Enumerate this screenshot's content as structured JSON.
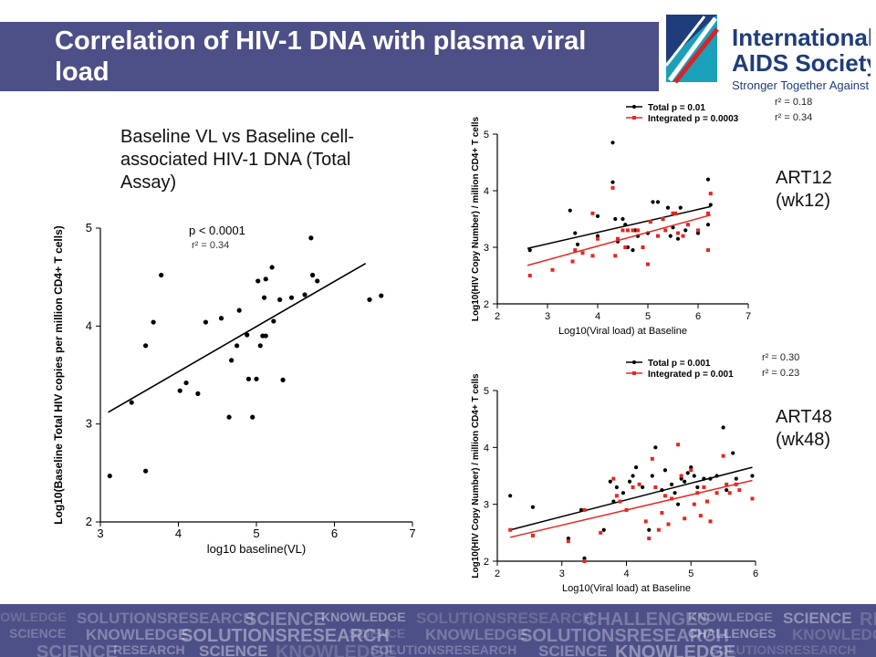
{
  "slide": {
    "title": "Correlation of HIV-1 DNA with plasma viral load",
    "caption": "Baseline VL vs Baseline cell-associated HIV-1 DNA (Total Assay)",
    "art12_label": "ART12\n(wk12)",
    "art48_label": "ART48\n(wk48)",
    "right_r2_top": [
      "r² = 0.18",
      "r² = 0.34"
    ],
    "right_r2_bottom": [
      "r² = 0.30",
      "r² = 0.23"
    ]
  },
  "logo": {
    "line1": "International",
    "line2": "AIDS Society",
    "tagline": "Stronger Together Against HIV",
    "colors": {
      "navy": "#1f3d7a",
      "teal": "#1aa0b8",
      "red": "#d8232a"
    }
  },
  "footer": {
    "words": [
      "KNOWLEDGE",
      "SOLUTIONSRESEARCH",
      "SCIENCE",
      "KNOWLEDGE",
      "SOLUTIONSRESEARCH",
      "CHALLENGES",
      "KNOWLEDGE",
      "SCIENCE",
      "RESEARCH",
      "SCIENCE"
    ]
  },
  "chart_data": [
    {
      "type": "scatter",
      "title": "",
      "xlabel": "log10 baseline(VL)",
      "ylabel": "Log10(Baseline Total HIV copies per million CD4+ T cells)",
      "xlim": [
        3,
        7
      ],
      "ylim": [
        2,
        5
      ],
      "xticks": [
        3,
        4,
        5,
        6,
        7
      ],
      "yticks": [
        2,
        3,
        4,
        5
      ],
      "annotations": [
        "p < 0.0001",
        "r² = 0.34"
      ],
      "series": [
        {
          "color": "#000000",
          "points": [
            [
              3.12,
              2.47
            ],
            [
              3.4,
              3.22
            ],
            [
              3.58,
              2.52
            ],
            [
              3.58,
              3.8
            ],
            [
              3.68,
              4.04
            ],
            [
              3.78,
              4.52
            ],
            [
              4.02,
              3.34
            ],
            [
              4.1,
              3.42
            ],
            [
              4.25,
              3.31
            ],
            [
              4.35,
              4.04
            ],
            [
              4.55,
              4.08
            ],
            [
              4.65,
              3.07
            ],
            [
              4.68,
              3.65
            ],
            [
              4.75,
              3.8
            ],
            [
              4.78,
              4.16
            ],
            [
              4.88,
              3.91
            ],
            [
              4.9,
              3.46
            ],
            [
              4.95,
              3.07
            ],
            [
              5.0,
              3.46
            ],
            [
              5.02,
              4.46
            ],
            [
              5.05,
              3.8
            ],
            [
              5.08,
              3.9
            ],
            [
              5.1,
              4.29
            ],
            [
              5.12,
              4.48
            ],
            [
              5.12,
              3.9
            ],
            [
              5.2,
              4.6
            ],
            [
              5.22,
              4.05
            ],
            [
              5.3,
              4.27
            ],
            [
              5.34,
              3.45
            ],
            [
              5.45,
              4.29
            ],
            [
              5.62,
              4.32
            ],
            [
              5.7,
              4.9
            ],
            [
              5.72,
              4.52
            ],
            [
              5.78,
              4.46
            ],
            [
              6.45,
              4.27
            ],
            [
              6.6,
              4.31
            ]
          ]
        }
      ],
      "fit": [
        [
          3.1,
          3.12
        ],
        [
          6.4,
          4.64
        ]
      ]
    },
    {
      "type": "scatter",
      "title": "",
      "xlabel": "Log10(Viral load) at Baseline",
      "ylabel": "Log10(HIV Copy Number) / million CD4+ T cells",
      "xlim": [
        2,
        7
      ],
      "ylim": [
        2,
        5
      ],
      "xticks": [
        2,
        3,
        4,
        5,
        6,
        7
      ],
      "yticks": [
        2,
        3,
        4,
        5
      ],
      "series": [
        {
          "name": "Total p = 0.01",
          "color": "#000000",
          "points": [
            [
              2.65,
              2.95
            ],
            [
              3.55,
              3.25
            ],
            [
              3.6,
              3.05
            ],
            [
              4.0,
              3.55
            ],
            [
              4.3,
              4.85
            ],
            [
              4.3,
              4.15
            ],
            [
              4.35,
              3.5
            ],
            [
              4.4,
              3.1
            ],
            [
              4.5,
              3.5
            ],
            [
              4.55,
              3.4
            ],
            [
              4.6,
              3.0
            ],
            [
              4.7,
              2.95
            ],
            [
              4.75,
              3.3
            ],
            [
              4.8,
              3.2
            ],
            [
              5.0,
              3.25
            ],
            [
              5.1,
              3.8
            ],
            [
              5.2,
              3.8
            ],
            [
              5.3,
              3.5
            ],
            [
              5.4,
              3.7
            ],
            [
              5.45,
              3.2
            ],
            [
              5.5,
              3.35
            ],
            [
              5.6,
              3.15
            ],
            [
              5.65,
              3.7
            ],
            [
              5.75,
              3.3
            ],
            [
              6.0,
              3.25
            ],
            [
              6.2,
              4.2
            ],
            [
              6.2,
              3.4
            ],
            [
              6.25,
              3.75
            ],
            [
              3.45,
              3.65
            ],
            [
              4.0,
              3.2
            ]
          ],
          "fit": [
            [
              2.6,
              2.98
            ],
            [
              6.25,
              3.72
            ]
          ]
        },
        {
          "name": "Integrated p =  0.0003",
          "color": "#e8261f",
          "points": [
            [
              2.65,
              2.5
            ],
            [
              3.1,
              2.6
            ],
            [
              3.5,
              2.75
            ],
            [
              3.55,
              2.95
            ],
            [
              3.7,
              2.9
            ],
            [
              3.9,
              2.85
            ],
            [
              4.0,
              3.15
            ],
            [
              4.3,
              4.05
            ],
            [
              4.35,
              2.85
            ],
            [
              4.4,
              3.15
            ],
            [
              4.5,
              3.3
            ],
            [
              4.55,
              3.0
            ],
            [
              4.6,
              3.3
            ],
            [
              4.7,
              3.3
            ],
            [
              4.8,
              3.3
            ],
            [
              4.9,
              3.0
            ],
            [
              5.0,
              2.7
            ],
            [
              5.05,
              3.45
            ],
            [
              5.2,
              3.2
            ],
            [
              5.3,
              3.5
            ],
            [
              5.35,
              3.3
            ],
            [
              5.5,
              3.6
            ],
            [
              5.55,
              3.6
            ],
            [
              5.6,
              3.25
            ],
            [
              5.7,
              3.2
            ],
            [
              5.8,
              3.4
            ],
            [
              6.0,
              3.3
            ],
            [
              6.2,
              2.95
            ],
            [
              6.2,
              3.6
            ],
            [
              6.25,
              3.95
            ],
            [
              3.9,
              3.6
            ]
          ],
          "fit": [
            [
              2.6,
              2.68
            ],
            [
              6.25,
              3.57
            ]
          ]
        }
      ]
    },
    {
      "type": "scatter",
      "title": "",
      "xlabel": "Log10(Viral load) at Baseline",
      "ylabel": "Log10(HIV Copy Number) / million CD4+ T cells",
      "xlim": [
        2,
        6
      ],
      "ylim": [
        2,
        5
      ],
      "xticks": [
        2,
        3,
        4,
        5,
        6
      ],
      "yticks": [
        2,
        3,
        4,
        5
      ],
      "series": [
        {
          "name": "Total p = 0.001",
          "color": "#000000",
          "points": [
            [
              2.2,
              3.15
            ],
            [
              2.55,
              2.95
            ],
            [
              3.1,
              2.4
            ],
            [
              3.3,
              2.9
            ],
            [
              3.35,
              2.05
            ],
            [
              3.65,
              2.55
            ],
            [
              3.75,
              3.4
            ],
            [
              3.85,
              3.3
            ],
            [
              3.95,
              3.2
            ],
            [
              4.05,
              3.4
            ],
            [
              4.1,
              3.5
            ],
            [
              4.15,
              3.65
            ],
            [
              4.25,
              3.3
            ],
            [
              4.35,
              2.55
            ],
            [
              4.4,
              3.5
            ],
            [
              4.45,
              4.0
            ],
            [
              4.55,
              3.25
            ],
            [
              4.6,
              3.6
            ],
            [
              4.7,
              3.35
            ],
            [
              4.75,
              3.2
            ],
            [
              4.8,
              3.0
            ],
            [
              4.85,
              3.45
            ],
            [
              4.95,
              3.55
            ],
            [
              5.0,
              3.65
            ],
            [
              5.05,
              3.5
            ],
            [
              5.1,
              3.3
            ],
            [
              5.2,
              3.45
            ],
            [
              5.3,
              3.45
            ],
            [
              5.4,
              3.5
            ],
            [
              5.5,
              4.35
            ],
            [
              5.55,
              3.25
            ],
            [
              5.65,
              3.9
            ],
            [
              5.7,
              3.45
            ],
            [
              5.95,
              3.5
            ],
            [
              3.8,
              3.05
            ],
            [
              4.9,
              3.4
            ]
          ],
          "fit": [
            [
              2.2,
              2.55
            ],
            [
              5.95,
              3.65
            ]
          ]
        },
        {
          "name": "Integrated p = 0.001",
          "color": "#e8261f",
          "points": [
            [
              2.2,
              2.55
            ],
            [
              2.55,
              2.45
            ],
            [
              3.1,
              2.35
            ],
            [
              3.35,
              2.9
            ],
            [
              3.35,
              2.0
            ],
            [
              3.6,
              2.5
            ],
            [
              3.8,
              3.45
            ],
            [
              3.85,
              3.15
            ],
            [
              3.9,
              3.05
            ],
            [
              4.0,
              2.9
            ],
            [
              4.1,
              3.3
            ],
            [
              4.2,
              3.35
            ],
            [
              4.3,
              2.7
            ],
            [
              4.35,
              2.4
            ],
            [
              4.4,
              3.8
            ],
            [
              4.45,
              3.3
            ],
            [
              4.5,
              2.55
            ],
            [
              4.55,
              2.85
            ],
            [
              4.6,
              3.15
            ],
            [
              4.65,
              2.65
            ],
            [
              4.7,
              3.1
            ],
            [
              4.8,
              4.05
            ],
            [
              4.85,
              3.5
            ],
            [
              4.9,
              2.75
            ],
            [
              5.0,
              3.6
            ],
            [
              5.05,
              3.0
            ],
            [
              5.1,
              3.2
            ],
            [
              5.15,
              2.8
            ],
            [
              5.2,
              3.3
            ],
            [
              5.25,
              3.05
            ],
            [
              5.3,
              2.7
            ],
            [
              5.4,
              3.2
            ],
            [
              5.5,
              3.85
            ],
            [
              5.55,
              3.35
            ],
            [
              5.6,
              3.2
            ],
            [
              5.7,
              3.35
            ],
            [
              5.75,
              3.25
            ],
            [
              5.95,
              3.1
            ]
          ],
          "fit": [
            [
              2.2,
              2.42
            ],
            [
              5.95,
              3.42
            ]
          ]
        }
      ]
    }
  ]
}
